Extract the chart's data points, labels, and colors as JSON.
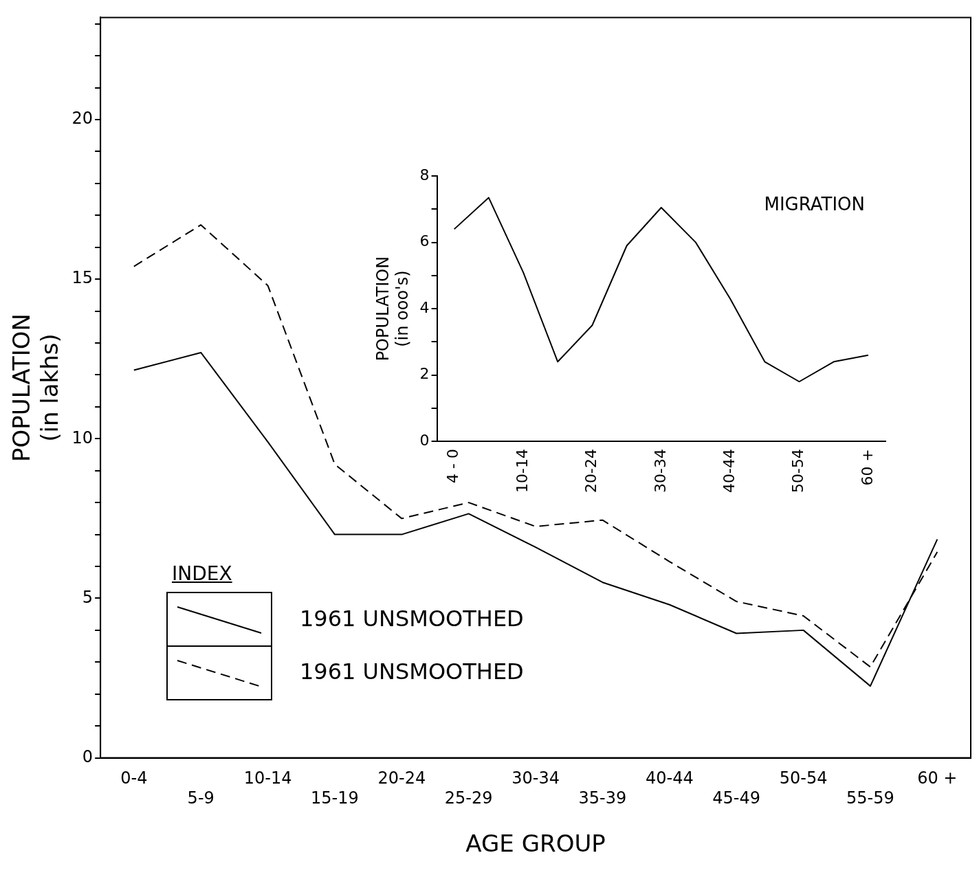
{
  "chart_data": [
    {
      "type": "line",
      "xlabel": "AGE GROUP",
      "ylabel": "POPULATION\n(in lakhs)",
      "legend_title": "INDEX",
      "legend": "bottom left",
      "categories": [
        "0-4",
        "5-9",
        "10-14",
        "15-19",
        "20-24",
        "25-29",
        "30-34",
        "35-39",
        "40-44",
        "45-49",
        "50-54",
        "55-59",
        "60 +"
      ],
      "series": [
        {
          "name": "1961 UNSMOOTHED",
          "color": "#000000",
          "line_style": "solid",
          "values": [
            12.15,
            12.7,
            9.9,
            7.0,
            7.0,
            7.65,
            6.6,
            5.5,
            4.8,
            3.9,
            4.0,
            2.25,
            6.85
          ]
        },
        {
          "name": "1961 UNSMOOTHED",
          "color": "#000000",
          "line_style": "dashed",
          "values": [
            15.4,
            16.7,
            14.8,
            9.2,
            7.5,
            8.0,
            7.25,
            7.45,
            6.15,
            4.9,
            4.45,
            2.85,
            6.45
          ]
        }
      ],
      "ylim": [
        0,
        23.2
      ],
      "yticks": [
        0,
        {
          "value": 1,
          "label": null
        },
        {
          "value": 2,
          "label": null
        },
        {
          "value": 3,
          "label": null
        },
        {
          "value": 4,
          "label": null
        },
        5,
        {
          "value": 6,
          "label": null
        },
        {
          "value": 7,
          "label": null
        },
        {
          "value": 8,
          "label": null
        },
        {
          "value": 9,
          "label": null
        },
        10,
        {
          "value": 11,
          "label": null
        },
        {
          "value": 12,
          "label": null
        },
        {
          "value": 13,
          "label": null
        },
        {
          "value": 14,
          "label": null
        },
        15,
        {
          "value": 16,
          "label": null
        },
        {
          "value": 17,
          "label": null
        },
        {
          "value": 18,
          "label": null
        },
        {
          "value": 19,
          "label": null
        },
        20,
        {
          "value": 21,
          "label": null
        },
        {
          "value": 22,
          "label": null
        },
        {
          "value": 23,
          "label": null
        }
      ],
      "grid": false
    },
    {
      "type": "line",
      "ylabel": "POPULATION\n(in ooo's)",
      "annotations": [
        "MIGRATION"
      ],
      "categories": [
        "4 - 0",
        null,
        "10-14",
        null,
        "20-24",
        null,
        "30-34",
        null,
        "40-44",
        null,
        "50-54",
        null,
        "60 +"
      ],
      "series": [
        {
          "color": "#000000",
          "line_style": "solid",
          "values": [
            6.4,
            7.35,
            5.1,
            2.4,
            3.5,
            5.9,
            7.05,
            6.0,
            4.3,
            2.4,
            1.8,
            2.4,
            2.6
          ]
        }
      ],
      "ylim": [
        0,
        8
      ],
      "yticks": [
        0,
        {
          "value": 1,
          "label": null
        },
        2,
        {
          "value": 3,
          "label": null
        },
        4,
        {
          "value": 5,
          "label": null
        },
        6,
        {
          "value": 7,
          "label": null
        },
        8
      ],
      "grid": false
    }
  ]
}
